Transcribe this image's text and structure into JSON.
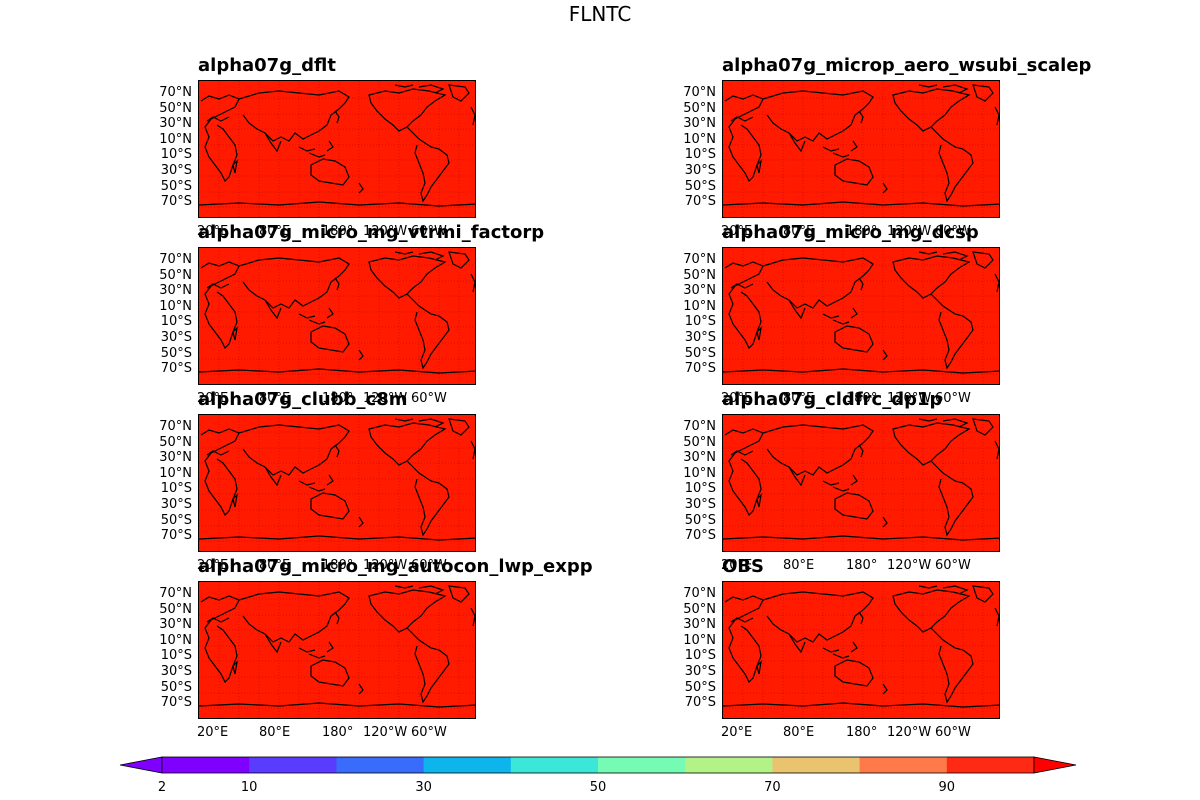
{
  "figure": {
    "title": "FLNTC"
  },
  "panels": [
    {
      "title": "alpha07g_dflt"
    },
    {
      "title": "alpha07g_microp_aero_wsubi_scalep"
    },
    {
      "title": "alpha07g_micro_mg_vtrmi_factorp"
    },
    {
      "title": "alpha07g_micro_mg_dcsp"
    },
    {
      "title": "alpha07g_clubb_c8m"
    },
    {
      "title": "alpha07g_cldfrc_dp1p"
    },
    {
      "title": "alpha07g_micro_mg_autocon_lwp_expp"
    },
    {
      "title": "OBS"
    }
  ],
  "axes": {
    "lat_ticks": [
      "70°N",
      "50°N",
      "30°N",
      "10°N",
      "10°S",
      "30°S",
      "50°S",
      "70°S"
    ],
    "lon_ticks": [
      "20°E",
      "80°E",
      "180°",
      "120°W",
      "60°W"
    ]
  },
  "colorbar": {
    "ticks": [
      "2",
      "10",
      "30",
      "50",
      "70",
      "90"
    ],
    "colors": [
      "#8000ff",
      "#5a3cfe",
      "#3a6cfb",
      "#0eb4ec",
      "#3be8d8",
      "#76fbb4",
      "#b2f286",
      "#eac36e",
      "#ff7a4a",
      "#ff2a14",
      "#ff0000"
    ]
  },
  "map_fill_color": "#ff1a00"
}
